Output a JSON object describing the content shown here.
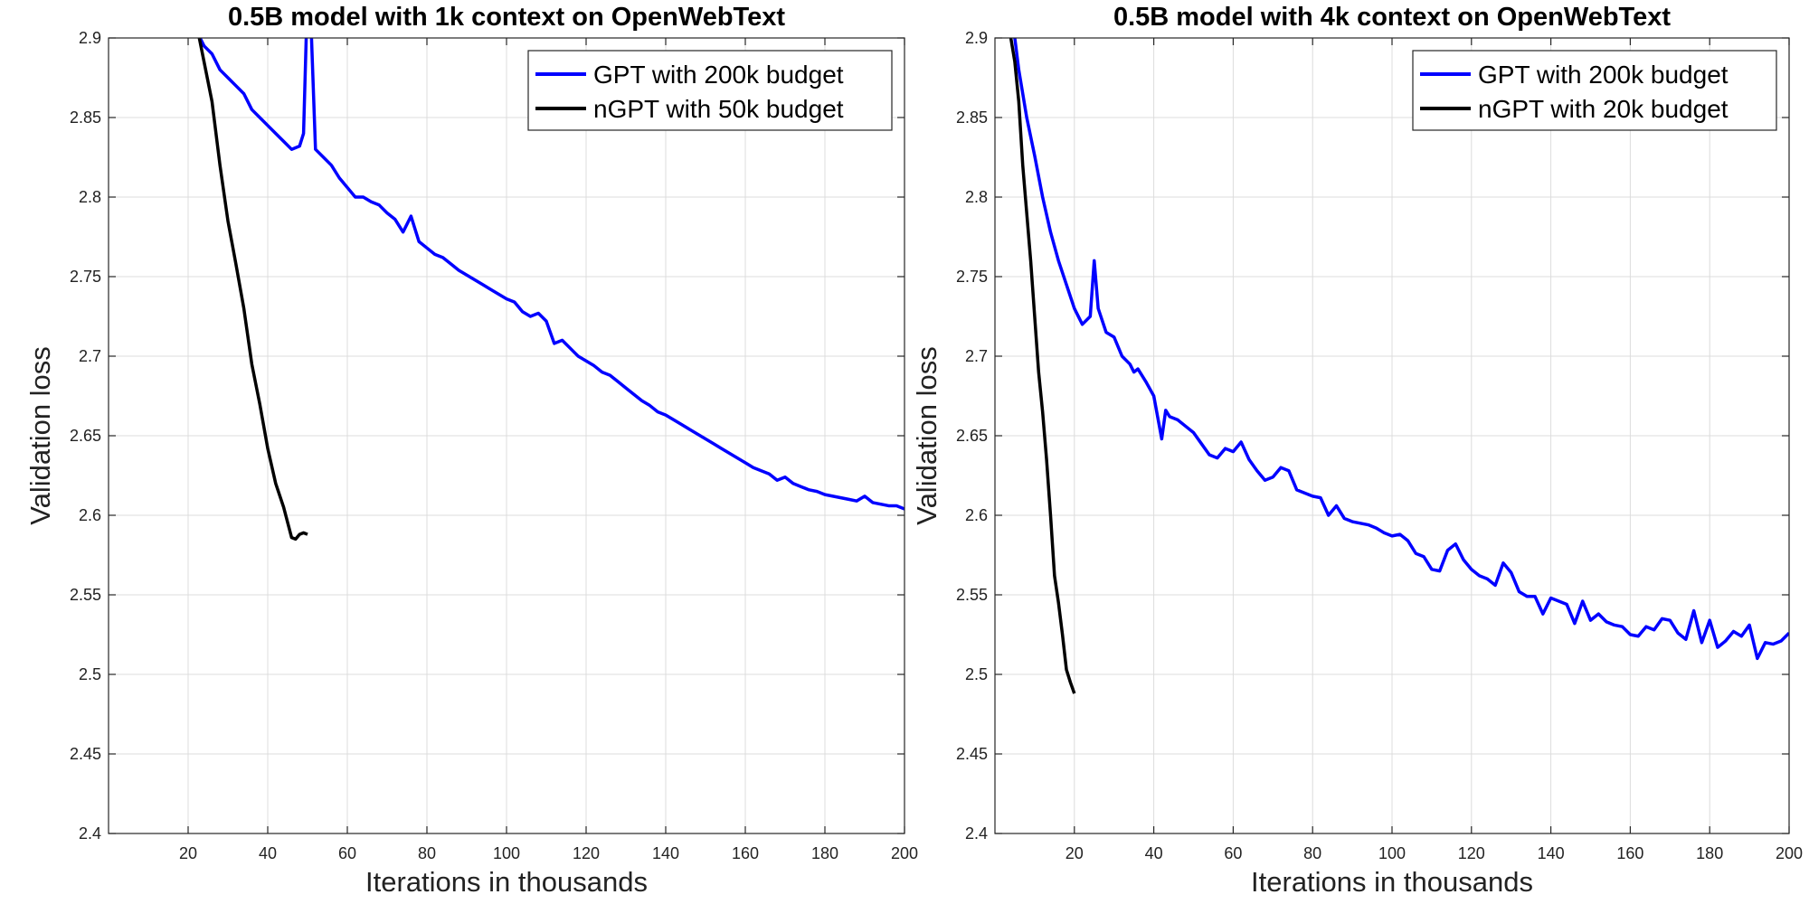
{
  "chart_data": [
    {
      "type": "line",
      "title": "0.5B model with 1k context on OpenWebText",
      "xlabel": "Iterations in thousands",
      "ylabel": "Validation loss",
      "xlim": [
        0,
        200
      ],
      "ylim": [
        2.4,
        2.9
      ],
      "xticks": [
        20,
        40,
        60,
        80,
        100,
        120,
        140,
        160,
        180,
        200
      ],
      "xtick_labels": [
        "20",
        "40",
        "60",
        "80",
        "100",
        "120",
        "140",
        "160",
        "180",
        "200"
      ],
      "yticks": [
        2.4,
        2.45,
        2.5,
        2.55,
        2.6,
        2.65,
        2.7,
        2.75,
        2.8,
        2.85,
        2.9
      ],
      "ytick_labels": [
        "2.4",
        "2.45",
        "2.5",
        "2.55",
        "2.6",
        "2.65",
        "2.7",
        "2.75",
        "2.8",
        "2.85",
        "2.9"
      ],
      "grid": true,
      "legend_position": "top-right",
      "series": [
        {
          "name": "GPT with 200k budget",
          "color": "#0000ff",
          "x": [
            20,
            22,
            24,
            26,
            28,
            30,
            32,
            34,
            36,
            38,
            40,
            42,
            44,
            46,
            48,
            49,
            50,
            51,
            52,
            54,
            56,
            58,
            60,
            62,
            64,
            66,
            68,
            70,
            72,
            74,
            76,
            78,
            80,
            82,
            84,
            86,
            88,
            90,
            92,
            94,
            96,
            98,
            100,
            102,
            104,
            106,
            108,
            110,
            112,
            114,
            116,
            118,
            120,
            122,
            124,
            126,
            128,
            130,
            132,
            134,
            136,
            138,
            140,
            142,
            144,
            146,
            148,
            150,
            152,
            154,
            156,
            158,
            160,
            162,
            164,
            166,
            168,
            170,
            172,
            174,
            176,
            178,
            180,
            182,
            184,
            186,
            188,
            190,
            192,
            194,
            196,
            198,
            200
          ],
          "values": [
            2.92,
            2.905,
            2.895,
            2.89,
            2.88,
            2.875,
            2.87,
            2.865,
            2.855,
            2.85,
            2.845,
            2.84,
            2.835,
            2.83,
            2.832,
            2.84,
            2.93,
            2.9,
            2.83,
            2.825,
            2.82,
            2.812,
            2.806,
            2.8,
            2.8,
            2.797,
            2.795,
            2.79,
            2.786,
            2.778,
            2.788,
            2.772,
            2.768,
            2.764,
            2.762,
            2.758,
            2.754,
            2.751,
            2.748,
            2.745,
            2.742,
            2.739,
            2.736,
            2.734,
            2.728,
            2.725,
            2.727,
            2.722,
            2.708,
            2.71,
            2.705,
            2.7,
            2.697,
            2.694,
            2.69,
            2.688,
            2.684,
            2.68,
            2.676,
            2.672,
            2.669,
            2.665,
            2.663,
            2.66,
            2.657,
            2.654,
            2.651,
            2.648,
            2.645,
            2.642,
            2.639,
            2.636,
            2.633,
            2.63,
            2.628,
            2.626,
            2.622,
            2.624,
            2.62,
            2.618,
            2.616,
            2.615,
            2.613,
            2.612,
            2.611,
            2.61,
            2.609,
            2.612,
            2.608,
            2.607,
            2.606,
            2.606,
            2.604
          ]
        },
        {
          "name": "nGPT with 50k budget",
          "color": "#000000",
          "x": [
            22,
            24,
            26,
            28,
            30,
            32,
            34,
            36,
            38,
            40,
            42,
            44,
            46,
            47,
            48,
            49,
            50
          ],
          "values": [
            2.91,
            2.885,
            2.86,
            2.82,
            2.785,
            2.758,
            2.73,
            2.695,
            2.67,
            2.642,
            2.62,
            2.605,
            2.586,
            2.585,
            2.588,
            2.589,
            2.588
          ]
        }
      ]
    },
    {
      "type": "line",
      "title": "0.5B model with 4k context on OpenWebText",
      "xlabel": "Iterations in thousands",
      "ylabel": "Validation loss",
      "xlim": [
        0,
        200
      ],
      "ylim": [
        2.4,
        2.9
      ],
      "xticks": [
        20,
        40,
        60,
        80,
        100,
        120,
        140,
        160,
        180,
        200
      ],
      "xtick_labels": [
        "20",
        "40",
        "60",
        "80",
        "100",
        "120",
        "140",
        "160",
        "180",
        "200"
      ],
      "yticks": [
        2.4,
        2.45,
        2.5,
        2.55,
        2.6,
        2.65,
        2.7,
        2.75,
        2.8,
        2.85,
        2.9
      ],
      "ytick_labels": [
        "2.4",
        "2.45",
        "2.5",
        "2.55",
        "2.6",
        "2.65",
        "2.7",
        "2.75",
        "2.8",
        "2.85",
        "2.9"
      ],
      "grid": true,
      "legend_position": "top-right",
      "series": [
        {
          "name": "GPT with 200k budget",
          "color": "#0000ff",
          "x": [
            5,
            6,
            8,
            10,
            12,
            14,
            16,
            18,
            20,
            22,
            24,
            25,
            26,
            28,
            30,
            32,
            34,
            35,
            36,
            38,
            40,
            42,
            43,
            44,
            46,
            48,
            50,
            52,
            54,
            56,
            58,
            60,
            62,
            64,
            66,
            68,
            70,
            72,
            74,
            76,
            78,
            80,
            82,
            84,
            86,
            88,
            90,
            92,
            94,
            96,
            98,
            100,
            102,
            104,
            106,
            108,
            110,
            112,
            114,
            116,
            118,
            120,
            122,
            124,
            126,
            128,
            130,
            132,
            134,
            136,
            138,
            140,
            142,
            144,
            146,
            148,
            150,
            152,
            154,
            156,
            158,
            160,
            162,
            164,
            166,
            168,
            170,
            172,
            174,
            176,
            178,
            180,
            182,
            184,
            186,
            188,
            190,
            192,
            194,
            196,
            198,
            200
          ],
          "values": [
            2.9,
            2.88,
            2.85,
            2.826,
            2.8,
            2.778,
            2.76,
            2.745,
            2.73,
            2.72,
            2.725,
            2.76,
            2.73,
            2.715,
            2.712,
            2.7,
            2.695,
            2.69,
            2.692,
            2.684,
            2.675,
            2.648,
            2.666,
            2.662,
            2.66,
            2.656,
            2.652,
            2.645,
            2.638,
            2.636,
            2.642,
            2.64,
            2.646,
            2.635,
            2.628,
            2.622,
            2.624,
            2.63,
            2.628,
            2.616,
            2.614,
            2.612,
            2.611,
            2.6,
            2.606,
            2.598,
            2.596,
            2.595,
            2.594,
            2.592,
            2.589,
            2.587,
            2.588,
            2.584,
            2.576,
            2.574,
            2.566,
            2.565,
            2.578,
            2.582,
            2.572,
            2.566,
            2.562,
            2.56,
            2.556,
            2.57,
            2.564,
            2.552,
            2.549,
            2.549,
            2.538,
            2.548,
            2.546,
            2.544,
            2.532,
            2.546,
            2.534,
            2.538,
            2.533,
            2.531,
            2.53,
            2.525,
            2.524,
            2.53,
            2.528,
            2.535,
            2.534,
            2.526,
            2.522,
            2.54,
            2.52,
            2.534,
            2.517,
            2.521,
            2.527,
            2.524,
            2.531,
            2.51,
            2.52,
            2.519,
            2.521,
            2.526
          ]
        },
        {
          "name": "nGPT with 20k budget",
          "color": "#000000",
          "x": [
            4,
            5,
            6,
            7,
            8,
            9,
            10,
            11,
            12,
            13,
            14,
            15,
            16,
            17,
            18,
            19,
            20
          ],
          "values": [
            2.9,
            2.885,
            2.86,
            2.82,
            2.79,
            2.76,
            2.725,
            2.69,
            2.665,
            2.635,
            2.6,
            2.562,
            2.545,
            2.525,
            2.503,
            2.495,
            2.488
          ]
        }
      ]
    }
  ]
}
